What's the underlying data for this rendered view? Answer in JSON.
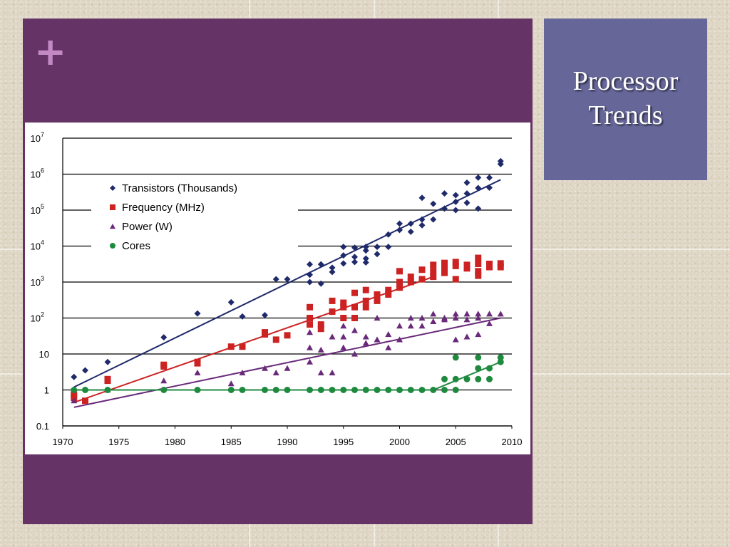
{
  "slide": {
    "title_line1": "Processor",
    "title_line2": "Trends",
    "plus_symbol": "+",
    "colors": {
      "main_panel": "#663366",
      "title_panel": "#666699",
      "plus": "#c389c3",
      "background": "#ddd4c2"
    }
  },
  "chart_data": {
    "type": "scatter",
    "title": "",
    "xlabel": "",
    "ylabel": "",
    "xlim": [
      1970,
      2010
    ],
    "ylim": [
      0.1,
      10000000
    ],
    "yscale": "log",
    "grid": "horizontal",
    "legend_position": "top-left",
    "x_ticks": [
      "1970",
      "1975",
      "1980",
      "1985",
      "1990",
      "1995",
      "2000",
      "2005",
      "2010"
    ],
    "y_ticks": [
      {
        "value": 0.1,
        "label": "0.1"
      },
      {
        "value": 1,
        "label": "1"
      },
      {
        "value": 10,
        "label": "10"
      },
      {
        "value": 100,
        "label": "10",
        "exp": "2"
      },
      {
        "value": 1000,
        "label": "10",
        "exp": "3"
      },
      {
        "value": 10000,
        "label": "10",
        "exp": "4"
      },
      {
        "value": 100000,
        "label": "10",
        "exp": "5"
      },
      {
        "value": 1000000,
        "label": "10",
        "exp": "6"
      },
      {
        "value": 10000000,
        "label": "10",
        "exp": "7"
      }
    ],
    "series": [
      {
        "name": "Transistors (Thousands)",
        "marker": "diamond",
        "color": "#1f2a6b",
        "points": [
          [
            1971,
            2.3
          ],
          [
            1972,
            3.5
          ],
          [
            1974,
            6
          ],
          [
            1979,
            29
          ],
          [
            1982,
            134
          ],
          [
            1985,
            275
          ],
          [
            1986,
            110
          ],
          [
            1988,
            120
          ],
          [
            1989,
            1200
          ],
          [
            1990,
            1200
          ],
          [
            1992,
            3100
          ],
          [
            1992,
            1600
          ],
          [
            1992,
            1000
          ],
          [
            1993,
            3100
          ],
          [
            1993,
            900
          ],
          [
            1994,
            2500
          ],
          [
            1994,
            1900
          ],
          [
            1995,
            9500
          ],
          [
            1995,
            5500
          ],
          [
            1995,
            3300
          ],
          [
            1996,
            9000
          ],
          [
            1996,
            5000
          ],
          [
            1996,
            3600
          ],
          [
            1997,
            9500
          ],
          [
            1997,
            7500
          ],
          [
            1997,
            4500
          ],
          [
            1997,
            3500
          ],
          [
            1998,
            9500
          ],
          [
            1998,
            6000
          ],
          [
            1999,
            9500
          ],
          [
            1999,
            21000
          ],
          [
            2000,
            42000
          ],
          [
            2000,
            28000
          ],
          [
            2001,
            42000
          ],
          [
            2001,
            25000
          ],
          [
            2002,
            55000
          ],
          [
            2002,
            220000
          ],
          [
            2002,
            38000
          ],
          [
            2003,
            150000
          ],
          [
            2003,
            55000
          ],
          [
            2004,
            290000
          ],
          [
            2004,
            110000
          ],
          [
            2005,
            170000
          ],
          [
            2005,
            260000
          ],
          [
            2005,
            100000
          ],
          [
            2006,
            290000
          ],
          [
            2006,
            580000
          ],
          [
            2006,
            160000
          ],
          [
            2007,
            800000
          ],
          [
            2007,
            410000
          ],
          [
            2007,
            110000
          ],
          [
            2008,
            800000
          ],
          [
            2008,
            420000
          ],
          [
            2009,
            2300000
          ],
          [
            2009,
            1900000
          ]
        ],
        "trend": [
          [
            1971,
            1.2
          ],
          [
            2009,
            700000
          ]
        ]
      },
      {
        "name": "Frequency (MHz)",
        "marker": "square",
        "color": "#cc2222",
        "points": [
          [
            1971,
            0.74
          ],
          [
            1971,
            0.6
          ],
          [
            1972,
            0.5
          ],
          [
            1974,
            2
          ],
          [
            1974,
            1.8
          ],
          [
            1979,
            5
          ],
          [
            1979,
            4.5
          ],
          [
            1982,
            6
          ],
          [
            1982,
            5.5
          ],
          [
            1985,
            16
          ],
          [
            1986,
            16
          ],
          [
            1988,
            40
          ],
          [
            1988,
            35
          ],
          [
            1989,
            25
          ],
          [
            1990,
            33
          ],
          [
            1992,
            200
          ],
          [
            1992,
            100
          ],
          [
            1992,
            66
          ],
          [
            1993,
            66
          ],
          [
            1993,
            50
          ],
          [
            1994,
            300
          ],
          [
            1994,
            150
          ],
          [
            1995,
            266
          ],
          [
            1995,
            200
          ],
          [
            1995,
            100
          ],
          [
            1996,
            500
          ],
          [
            1996,
            200
          ],
          [
            1996,
            100
          ],
          [
            1997,
            600
          ],
          [
            1997,
            300
          ],
          [
            1997,
            200
          ],
          [
            1998,
            450
          ],
          [
            1998,
            300
          ],
          [
            1999,
            600
          ],
          [
            1999,
            450
          ],
          [
            2000,
            2000
          ],
          [
            2000,
            1000
          ],
          [
            2000,
            700
          ],
          [
            2001,
            1400
          ],
          [
            2001,
            1000
          ],
          [
            2002,
            2200
          ],
          [
            2002,
            1200
          ],
          [
            2003,
            3000
          ],
          [
            2003,
            2000
          ],
          [
            2003,
            1400
          ],
          [
            2004,
            3400
          ],
          [
            2004,
            2400
          ],
          [
            2004,
            1800
          ],
          [
            2005,
            3600
          ],
          [
            2005,
            2800
          ],
          [
            2005,
            1200
          ],
          [
            2006,
            3000
          ],
          [
            2006,
            2400
          ],
          [
            2007,
            4700
          ],
          [
            2007,
            3200
          ],
          [
            2007,
            2000
          ],
          [
            2007,
            1500
          ],
          [
            2008,
            3200
          ],
          [
            2008,
            2600
          ],
          [
            2009,
            3300
          ],
          [
            2009,
            2600
          ]
        ],
        "trend": [
          [
            1971,
            0.45
          ],
          [
            2003,
            1400
          ]
        ]
      },
      {
        "name": "Power (W)",
        "marker": "triangle",
        "color": "#6a2a7a",
        "points": [
          [
            1971,
            0.5
          ],
          [
            1974,
            1
          ],
          [
            1979,
            1.8
          ],
          [
            1982,
            3
          ],
          [
            1985,
            1.5
          ],
          [
            1986,
            3
          ],
          [
            1988,
            4
          ],
          [
            1989,
            3
          ],
          [
            1990,
            4
          ],
          [
            1992,
            15
          ],
          [
            1992,
            6
          ],
          [
            1992,
            40
          ],
          [
            1993,
            3
          ],
          [
            1993,
            13
          ],
          [
            1994,
            3
          ],
          [
            1994,
            30
          ],
          [
            1995,
            15
          ],
          [
            1995,
            60
          ],
          [
            1995,
            30
          ],
          [
            1996,
            45
          ],
          [
            1996,
            10
          ],
          [
            1997,
            30
          ],
          [
            1997,
            20
          ],
          [
            1998,
            25
          ],
          [
            1998,
            100
          ],
          [
            1999,
            35
          ],
          [
            1999,
            15
          ],
          [
            2000,
            60
          ],
          [
            2000,
            25
          ],
          [
            2001,
            100
          ],
          [
            2001,
            60
          ],
          [
            2002,
            100
          ],
          [
            2002,
            60
          ],
          [
            2003,
            130
          ],
          [
            2003,
            80
          ],
          [
            2004,
            100
          ],
          [
            2004,
            90
          ],
          [
            2005,
            130
          ],
          [
            2005,
            100
          ],
          [
            2005,
            25
          ],
          [
            2006,
            130
          ],
          [
            2006,
            90
          ],
          [
            2006,
            30
          ],
          [
            2007,
            130
          ],
          [
            2007,
            100
          ],
          [
            2007,
            35
          ],
          [
            2008,
            130
          ],
          [
            2008,
            70
          ],
          [
            2009,
            130
          ]
        ],
        "trend": [
          [
            1971,
            0.33
          ],
          [
            2009,
            100
          ]
        ]
      },
      {
        "name": "Cores",
        "marker": "circle",
        "color": "#1e8a3e",
        "points": [
          [
            1971,
            1
          ],
          [
            1972,
            1
          ],
          [
            1974,
            1
          ],
          [
            1979,
            1
          ],
          [
            1982,
            1
          ],
          [
            1985,
            1
          ],
          [
            1986,
            1
          ],
          [
            1988,
            1
          ],
          [
            1989,
            1
          ],
          [
            1990,
            1
          ],
          [
            1992,
            1
          ],
          [
            1993,
            1
          ],
          [
            1994,
            1
          ],
          [
            1995,
            1
          ],
          [
            1996,
            1
          ],
          [
            1997,
            1
          ],
          [
            1998,
            1
          ],
          [
            1999,
            1
          ],
          [
            2000,
            1
          ],
          [
            2001,
            1
          ],
          [
            2002,
            1
          ],
          [
            2003,
            1
          ],
          [
            2004,
            2
          ],
          [
            2004,
            1
          ],
          [
            2005,
            8
          ],
          [
            2005,
            2
          ],
          [
            2005,
            1
          ],
          [
            2006,
            2
          ],
          [
            2007,
            8
          ],
          [
            2007,
            4
          ],
          [
            2007,
            2
          ],
          [
            2008,
            4
          ],
          [
            2008,
            2
          ],
          [
            2009,
            8
          ],
          [
            2009,
            6
          ]
        ],
        "trend": [
          [
            1971,
            1
          ],
          [
            2003,
            1
          ],
          [
            2009,
            6
          ]
        ]
      }
    ]
  }
}
